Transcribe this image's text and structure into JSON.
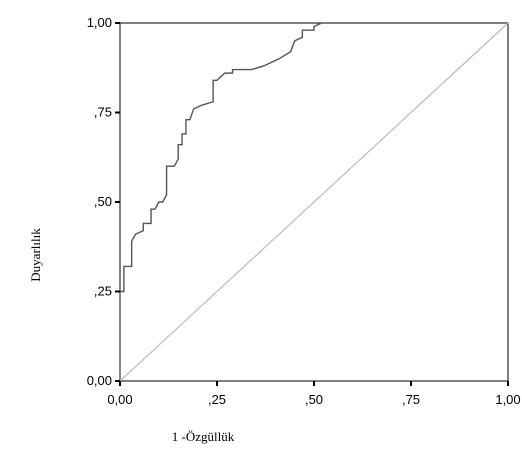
{
  "chart_data": {
    "type": "line",
    "xlabel": "1 -Özgüllük",
    "ylabel": "Duyarlılık",
    "xlim": [
      0,
      1
    ],
    "ylim": [
      0,
      1
    ],
    "x_ticks": [
      {
        "value": 0,
        "label": "0,00"
      },
      {
        "value": 0.25,
        "label": ",25"
      },
      {
        "value": 0.5,
        "label": ",50"
      },
      {
        "value": 0.75,
        "label": ",75"
      },
      {
        "value": 1,
        "label": "1,00"
      }
    ],
    "y_ticks": [
      {
        "value": 0,
        "label": "0,00"
      },
      {
        "value": 0.25,
        "label": ",25"
      },
      {
        "value": 0.5,
        "label": ",50"
      },
      {
        "value": 0.75,
        "label": ",75"
      },
      {
        "value": 1,
        "label": "1,00"
      }
    ],
    "grid": false,
    "series": [
      {
        "color": "#555555",
        "points": [
          [
            0,
            0
          ],
          [
            0,
            0.25
          ],
          [
            0.01,
            0.25
          ],
          [
            0.01,
            0.32
          ],
          [
            0.03,
            0.32
          ],
          [
            0.03,
            0.39
          ],
          [
            0.04,
            0.41
          ],
          [
            0.06,
            0.42
          ],
          [
            0.06,
            0.44
          ],
          [
            0.08,
            0.44
          ],
          [
            0.08,
            0.48
          ],
          [
            0.09,
            0.48
          ],
          [
            0.1,
            0.5
          ],
          [
            0.11,
            0.5
          ],
          [
            0.12,
            0.52
          ],
          [
            0.12,
            0.6
          ],
          [
            0.14,
            0.6
          ],
          [
            0.15,
            0.62
          ],
          [
            0.15,
            0.66
          ],
          [
            0.16,
            0.66
          ],
          [
            0.16,
            0.69
          ],
          [
            0.17,
            0.69
          ],
          [
            0.17,
            0.73
          ],
          [
            0.18,
            0.73
          ],
          [
            0.19,
            0.76
          ],
          [
            0.21,
            0.77
          ],
          [
            0.24,
            0.78
          ],
          [
            0.24,
            0.84
          ],
          [
            0.25,
            0.84
          ],
          [
            0.26,
            0.85
          ],
          [
            0.27,
            0.86
          ],
          [
            0.29,
            0.86
          ],
          [
            0.29,
            0.87
          ],
          [
            0.34,
            0.87
          ],
          [
            0.37,
            0.88
          ],
          [
            0.41,
            0.9
          ],
          [
            0.44,
            0.92
          ],
          [
            0.45,
            0.95
          ],
          [
            0.47,
            0.96
          ],
          [
            0.47,
            0.98
          ],
          [
            0.5,
            0.98
          ],
          [
            0.5,
            0.99
          ],
          [
            0.52,
            1.0
          ],
          [
            1.0,
            1.0
          ]
        ]
      },
      {
        "color": "#bbbbbb",
        "points": [
          [
            0,
            0
          ],
          [
            1,
            1
          ]
        ]
      }
    ]
  }
}
